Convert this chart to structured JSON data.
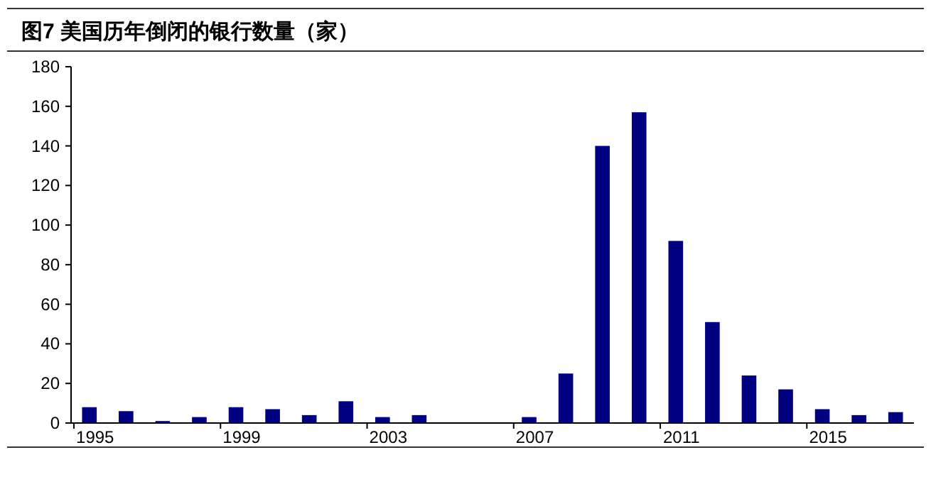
{
  "chart_data": {
    "type": "bar",
    "title": "图7  美国历年倒闭的银行数量（家）",
    "categories": [
      "1995",
      null,
      null,
      null,
      "1999",
      null,
      null,
      null,
      "2003",
      null,
      null,
      null,
      "2007",
      null,
      null,
      null,
      "2011",
      null,
      null,
      null,
      "2015",
      null,
      null
    ],
    "values": [
      8,
      6,
      1,
      3,
      8,
      7,
      4,
      11,
      3,
      4,
      0,
      0,
      3,
      25,
      140,
      157,
      92,
      51,
      24,
      17,
      7,
      4,
      5.5
    ],
    "color": "#000080",
    "ylim": [
      0,
      180
    ],
    "yticks": [
      0,
      20,
      40,
      60,
      80,
      100,
      120,
      140,
      160,
      180
    ]
  }
}
